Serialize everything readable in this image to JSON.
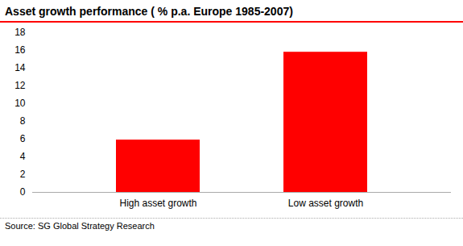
{
  "chart_data": {
    "type": "bar",
    "title": "Asset growth performance ( % p.a. Europe 1985-2007)",
    "categories": [
      "High asset growth",
      "Low asset growth"
    ],
    "values": [
      5.9,
      15.8
    ],
    "color": "#ff0000",
    "ylim": [
      0,
      18
    ],
    "yticks": [
      0,
      2,
      4,
      6,
      8,
      10,
      12,
      14,
      16,
      18
    ],
    "grid": false,
    "caption": "Source: SG Global Strategy Research"
  }
}
